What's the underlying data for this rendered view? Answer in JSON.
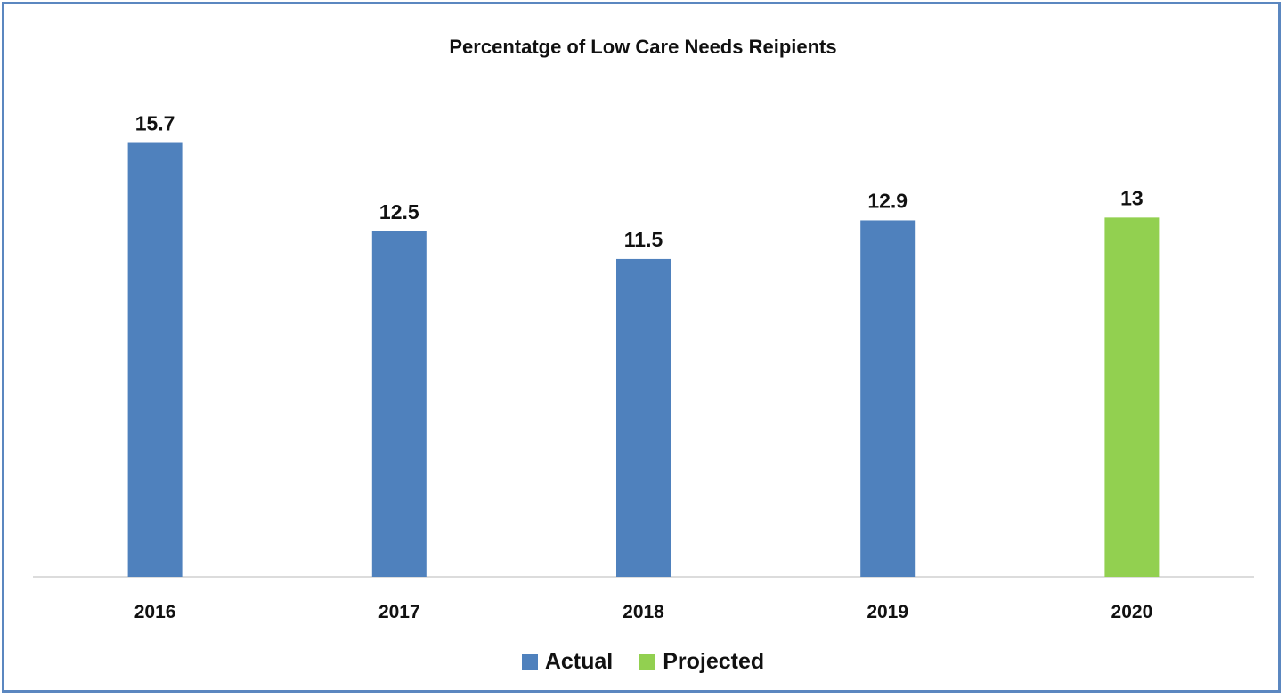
{
  "chart_data": {
    "type": "bar",
    "title": "Percentatge of Low Care Needs Reipients",
    "categories": [
      "2016",
      "2017",
      "2018",
      "2019",
      "2020"
    ],
    "values": [
      15.7,
      12.5,
      11.5,
      12.9,
      13
    ],
    "value_labels": [
      "15.7",
      "12.5",
      "11.5",
      "12.9",
      "13"
    ],
    "bar_series": [
      "Actual",
      "Actual",
      "Actual",
      "Actual",
      "Projected"
    ],
    "series": [
      {
        "name": "Actual",
        "color": "#4f81bd"
      },
      {
        "name": "Projected",
        "color": "#92d050"
      }
    ],
    "ylim": [
      0,
      16.2
    ],
    "grid": false,
    "legend_position": "bottom"
  }
}
